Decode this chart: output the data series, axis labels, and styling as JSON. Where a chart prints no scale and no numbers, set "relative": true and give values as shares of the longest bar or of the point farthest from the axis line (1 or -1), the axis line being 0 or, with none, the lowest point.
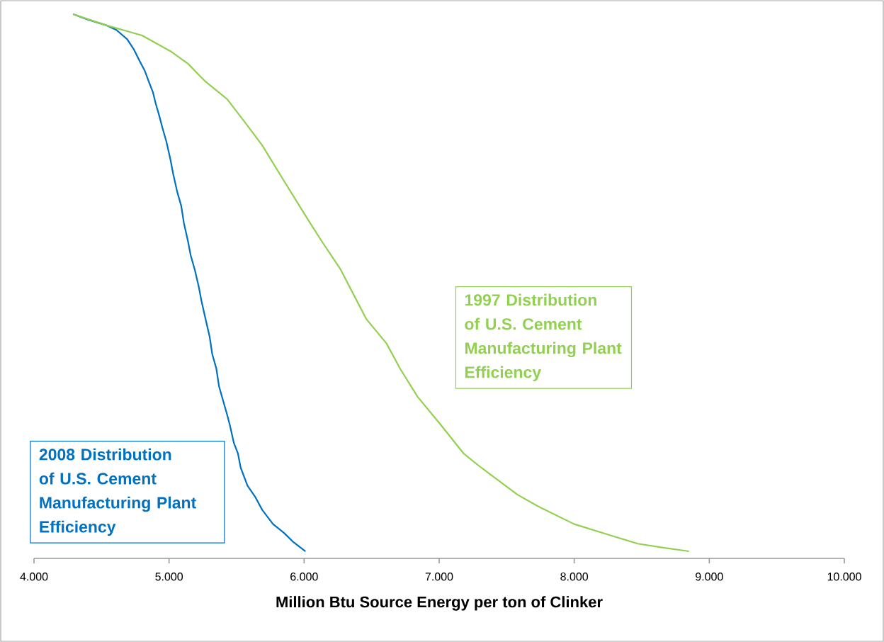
{
  "chart_data": {
    "type": "line",
    "relative": true,
    "xlabel": "Million Btu Source Energy per ton of Clinker",
    "xlim": [
      4,
      10
    ],
    "xticks": [
      {
        "value": 4,
        "label": "4.000"
      },
      {
        "value": 5,
        "label": "5.000"
      },
      {
        "value": 6,
        "label": "6.000"
      },
      {
        "value": 7,
        "label": "7.000"
      },
      {
        "value": 8,
        "label": "8.000"
      },
      {
        "value": 9,
        "label": "9.000"
      },
      {
        "value": 10,
        "label": "10.000"
      }
    ],
    "series": [
      {
        "name": "2008 Distribution of U.S. Cement Manufacturing Plant Efficiency",
        "color": "#0070c0",
        "x": [
          4.29,
          4.4,
          4.53,
          4.61,
          4.69,
          4.74,
          4.78,
          4.82,
          4.85,
          4.88,
          4.9,
          4.93,
          4.95,
          4.98,
          5.01,
          5.03,
          5.06,
          5.09,
          5.11,
          5.14,
          5.16,
          5.19,
          5.22,
          5.24,
          5.27,
          5.3,
          5.32,
          5.35,
          5.37,
          5.4,
          5.43,
          5.45,
          5.48,
          5.51,
          5.53,
          5.58,
          5.64,
          5.69,
          5.77,
          5.85,
          5.92,
          6.01
        ],
        "values": [
          1.0,
          0.99,
          0.98,
          0.971,
          0.954,
          0.935,
          0.915,
          0.896,
          0.876,
          0.857,
          0.837,
          0.811,
          0.792,
          0.766,
          0.733,
          0.707,
          0.674,
          0.648,
          0.616,
          0.583,
          0.557,
          0.531,
          0.499,
          0.473,
          0.44,
          0.408,
          0.375,
          0.349,
          0.316,
          0.29,
          0.264,
          0.245,
          0.212,
          0.193,
          0.167,
          0.134,
          0.112,
          0.089,
          0.063,
          0.047,
          0.03,
          0.013
        ]
      },
      {
        "name": "1997 Distribution of U.S. Cement Manufacturing Plant Efficiency",
        "color": "#92d050",
        "x": [
          4.29,
          4.53,
          4.8,
          5.01,
          5.14,
          5.27,
          5.43,
          5.56,
          5.69,
          5.85,
          6.03,
          6.13,
          6.27,
          6.46,
          6.61,
          6.71,
          6.84,
          7.0,
          7.18,
          7.31,
          7.45,
          7.58,
          7.73,
          8.0,
          8.26,
          8.47,
          8.65,
          8.85
        ],
        "values": [
          1.0,
          0.98,
          0.961,
          0.932,
          0.909,
          0.876,
          0.844,
          0.802,
          0.759,
          0.694,
          0.622,
          0.583,
          0.531,
          0.44,
          0.395,
          0.349,
          0.297,
          0.249,
          0.193,
          0.167,
          0.141,
          0.117,
          0.096,
          0.063,
          0.043,
          0.027,
          0.02,
          0.013
        ]
      }
    ]
  }
}
